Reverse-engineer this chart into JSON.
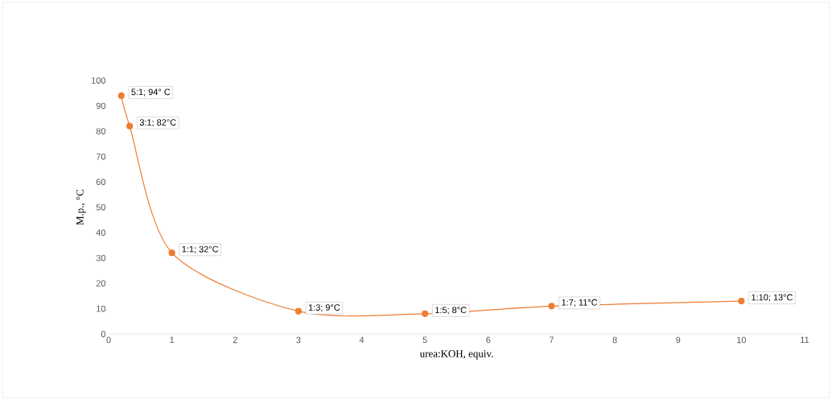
{
  "chart_data": {
    "type": "line",
    "xlabel": "urea:KOH, equiv.",
    "ylabel": "M.p., °C",
    "series": [
      {
        "color": "#ed7d31",
        "x": [
          0.2,
          0.333,
          1,
          3,
          5,
          7,
          10
        ],
        "values": [
          94,
          82,
          32,
          9,
          8,
          11,
          13
        ]
      }
    ],
    "marker": "circle",
    "line_style": "solid",
    "xlim": [
      0,
      11
    ],
    "xticks": [
      0,
      1,
      2,
      3,
      4,
      5,
      6,
      7,
      8,
      9,
      10,
      11
    ],
    "ylim": [
      0,
      100
    ],
    "yticks": [
      0,
      10,
      20,
      30,
      40,
      50,
      60,
      70,
      80,
      90,
      100
    ],
    "annotations": [
      {
        "text": "5:1; 94° C",
        "x": 0.2,
        "y": 94
      },
      {
        "text": "3:1; 82°C",
        "x": 0.333,
        "y": 82
      },
      {
        "text": "1:1; 32°C",
        "x": 1,
        "y": 32
      },
      {
        "text": "1:3; 9°C",
        "x": 3,
        "y": 9
      },
      {
        "text": "1:5; 8°C",
        "x": 5,
        "y": 8
      },
      {
        "text": "1:7; 11°C",
        "x": 7,
        "y": 11
      },
      {
        "text": "1:10; 13°C",
        "x": 10,
        "y": 13
      }
    ]
  }
}
